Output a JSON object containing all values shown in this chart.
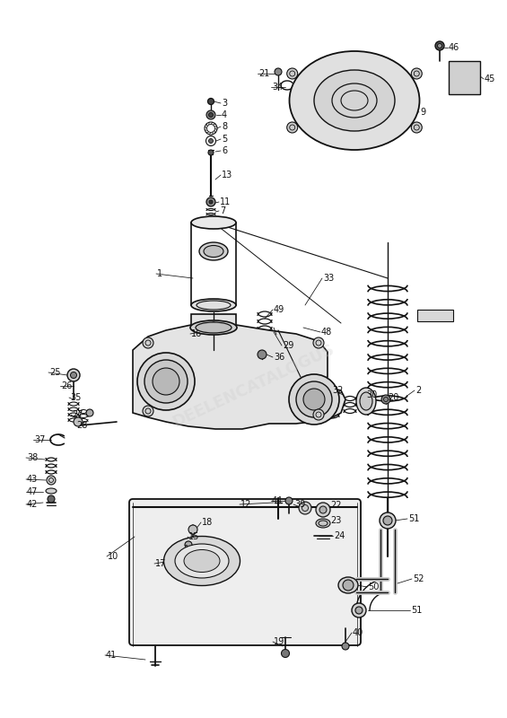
{
  "bg_color": "#ffffff",
  "line_color": "#111111",
  "figsize": [
    5.65,
    8.0
  ],
  "dpi": 100,
  "watermark": "DEELENCATALOGUS",
  "wm_color": "#cccccc",
  "wm_alpha": 0.3
}
